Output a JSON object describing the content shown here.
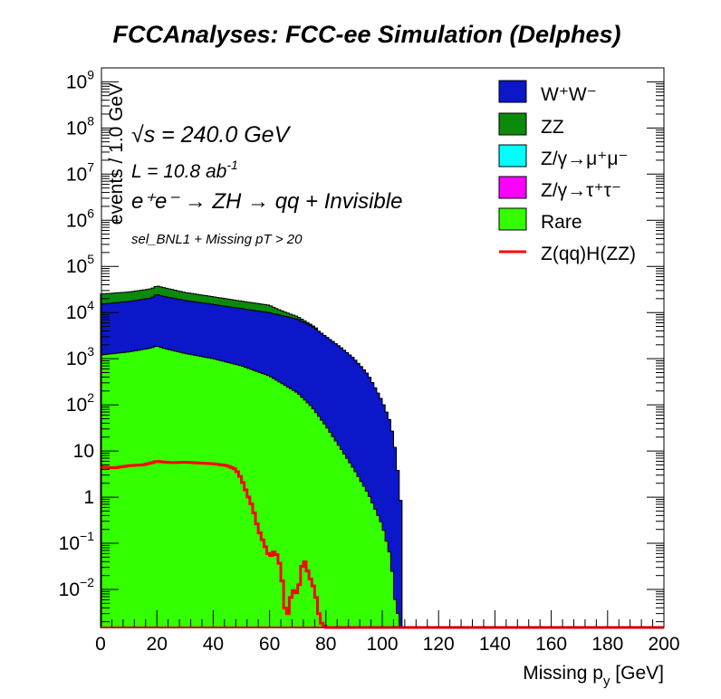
{
  "chart_data": {
    "type": "area",
    "title": "FCCAnalyses: FCC-ee Simulation (Delphes)",
    "xlabel": "Missing p",
    "xlabel_sub": "y",
    "xlabel_unit": "[GeV]",
    "ylabel": "events / 1.0 GeV",
    "xlim": [
      0,
      200
    ],
    "ylim": [
      0.0015,
      2000000000
    ],
    "yscale": "log",
    "x_ticks": [
      0,
      20,
      40,
      60,
      80,
      100,
      120,
      140,
      160,
      180,
      200
    ],
    "y_ticks": [
      {
        "mant": "10",
        "exp": "9",
        "v": 1000000000.0
      },
      {
        "mant": "10",
        "exp": "8",
        "v": 100000000.0
      },
      {
        "mant": "10",
        "exp": "7",
        "v": 10000000.0
      },
      {
        "mant": "10",
        "exp": "6",
        "v": 1000000.0
      },
      {
        "mant": "10",
        "exp": "5",
        "v": 100000.0
      },
      {
        "mant": "10",
        "exp": "4",
        "v": 10000.0
      },
      {
        "mant": "10",
        "exp": "3",
        "v": 1000.0
      },
      {
        "mant": "10",
        "exp": "2",
        "v": 100.0
      },
      {
        "mant": "10",
        "exp": "",
        "v": 10
      },
      {
        "mant": "1",
        "exp": "",
        "v": 1
      },
      {
        "mant": "10",
        "exp": "−1",
        "v": 0.1
      },
      {
        "mant": "10",
        "exp": "−2",
        "v": 0.01
      }
    ],
    "annotations": {
      "sqrt_s": "√s = 240.0 GeV",
      "lumi_base": "L = 10.8 ab",
      "lumi_exp": "-1",
      "process": "e⁺e⁻ → ZH → qq + Invisible",
      "selection": "sel_BNL1 + Missing pT > 20"
    },
    "legend_position": "top-right",
    "stack_order": [
      "Rare",
      "Z/γ→τ⁺τ⁻",
      "WW",
      "ZZ"
    ],
    "series": [
      {
        "name": "W⁺W⁻",
        "key": "WW",
        "color": "#0b17c8",
        "style": "stacked-fill",
        "x": [
          0,
          10,
          18,
          20,
          22,
          30,
          40,
          50,
          60,
          70,
          75,
          80,
          85,
          90,
          95,
          100,
          103,
          105,
          107
        ],
        "values": [
          14000,
          16000,
          19000,
          23000,
          21000,
          17000,
          14000,
          11500,
          9500,
          7000,
          5000,
          3000,
          1800,
          1000,
          450,
          120,
          40,
          8,
          0.4
        ]
      },
      {
        "name": "ZZ",
        "key": "ZZ",
        "color": "#0b8a0b",
        "style": "stacked-fill",
        "x": [
          0,
          10,
          18,
          20,
          22,
          30,
          40,
          50,
          60,
          70,
          75,
          80,
          85,
          90,
          95,
          100,
          103,
          105,
          107
        ],
        "values": [
          10000,
          10500,
          12000,
          13000,
          12500,
          9000,
          7000,
          5500,
          4500,
          1000,
          300,
          0,
          0,
          0,
          0,
          0,
          0,
          0,
          0
        ]
      },
      {
        "name": "Z/γ→μ⁺μ⁻",
        "key": "mumu",
        "color": "#00ffff",
        "style": "stacked-fill",
        "x": [
          0,
          200
        ],
        "values": [
          0,
          0
        ]
      },
      {
        "name": "Z/γ→τ⁺τ⁻",
        "key": "tautau",
        "color": "#ff00ff",
        "style": "stacked-fill",
        "x": [
          0,
          10,
          18,
          20,
          22,
          30,
          40,
          50,
          60,
          70,
          75,
          80,
          85,
          90,
          95,
          100,
          103,
          105,
          107
        ],
        "values": [
          4000,
          4500,
          6000,
          8000,
          6500,
          5200,
          4300,
          3600,
          2900,
          2300,
          1800,
          1300,
          650,
          300,
          120,
          35,
          8,
          1.5,
          0
        ]
      },
      {
        "name": "Rare",
        "key": "Rare",
        "color": "#33ff00",
        "style": "stacked-fill",
        "x": [
          0,
          10,
          18,
          20,
          22,
          30,
          40,
          50,
          60,
          70,
          75,
          80,
          85,
          90,
          95,
          100,
          103,
          105,
          107
        ],
        "values": [
          1200,
          1400,
          1700,
          1900,
          1700,
          1300,
          1000,
          700,
          420,
          180,
          90,
          35,
          12,
          4,
          1.2,
          0.25,
          0.05,
          0.003,
          0
        ]
      },
      {
        "name": "Z(qq)H(ZZ)",
        "key": "signal",
        "color": "#ff0000",
        "style": "line",
        "x": [
          0,
          5,
          10,
          15,
          18,
          20,
          22,
          25,
          30,
          35,
          40,
          45,
          48,
          50,
          52,
          54,
          56,
          58,
          60,
          62,
          64,
          66,
          68,
          70,
          72,
          74,
          76,
          78,
          80,
          200
        ],
        "values": [
          4.5,
          4.3,
          4.8,
          5.0,
          5.5,
          6.0,
          5.8,
          5.6,
          5.7,
          5.5,
          5.3,
          4.8,
          4.0,
          2.5,
          1.2,
          0.6,
          0.2,
          0.1,
          0.05,
          0.07,
          0.03,
          0.002,
          0.01,
          0.008,
          0.05,
          0.02,
          0.01,
          0.002,
          0.0015,
          0.0015
        ]
      }
    ]
  }
}
